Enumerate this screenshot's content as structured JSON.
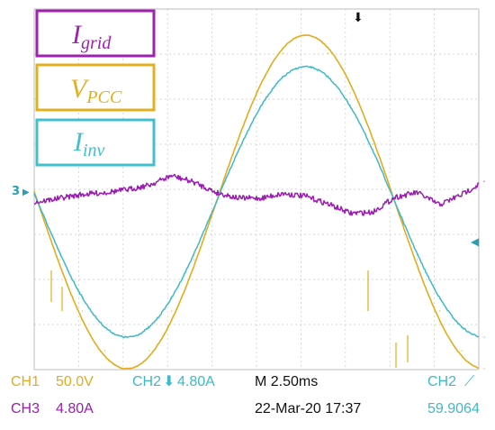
{
  "chart_data": {
    "type": "line",
    "title": "",
    "xlabel": "",
    "ylabel": "",
    "x_unit": "ms",
    "x_range": [
      -0.2,
      24.7
    ],
    "grid": true,
    "grid_divisions": {
      "x": 10,
      "y": 8
    },
    "legend": [
      {
        "text": "I",
        "sub": "grid",
        "color": "#a020b0",
        "position": "top-left"
      },
      {
        "text": "V",
        "sub": "PCC",
        "color": "#e0b020",
        "position": "top-left"
      },
      {
        "text": "I",
        "sub": "inv",
        "color": "#40c0cc",
        "position": "top-left"
      }
    ],
    "series": [
      {
        "name": "V_PCC",
        "channel": "CH1",
        "color": "#e6ab1c",
        "unit": "V",
        "points": [
          [
            0,
            0
          ],
          [
            1.25,
            -64
          ],
          [
            2.5,
            -121
          ],
          [
            3.75,
            -165
          ],
          [
            5,
            -185
          ],
          [
            6.25,
            -165
          ],
          [
            7.5,
            -121
          ],
          [
            8.75,
            -64
          ],
          [
            10,
            0
          ],
          [
            11.25,
            64
          ],
          [
            12.5,
            121
          ],
          [
            13.75,
            165
          ],
          [
            15,
            185
          ],
          [
            16.25,
            165
          ],
          [
            17.5,
            121
          ],
          [
            18.75,
            64
          ],
          [
            20,
            0
          ],
          [
            21.25,
            -64
          ],
          [
            22.5,
            -121
          ],
          [
            23.75,
            -165
          ],
          [
            25,
            -185
          ]
        ]
      },
      {
        "name": "I_inv",
        "channel": "CH2",
        "color": "#3fb8c8",
        "unit": "A",
        "points": [
          [
            0,
            0
          ],
          [
            1.25,
            -5.6
          ],
          [
            2.5,
            -10.3
          ],
          [
            3.75,
            -13.4
          ],
          [
            5,
            -14.4
          ],
          [
            6.25,
            -13.4
          ],
          [
            7.5,
            -10.3
          ],
          [
            8.75,
            -5.6
          ],
          [
            10,
            0
          ],
          [
            11.25,
            5.6
          ],
          [
            12.5,
            10.3
          ],
          [
            13.75,
            13.4
          ],
          [
            15,
            14.4
          ],
          [
            16.25,
            13.4
          ],
          [
            17.5,
            10.3
          ],
          [
            18.75,
            5.6
          ],
          [
            20,
            0
          ],
          [
            21.25,
            -5.6
          ],
          [
            22.5,
            -10.3
          ],
          [
            23.75,
            -13.4
          ],
          [
            25,
            -14.4
          ]
        ]
      },
      {
        "name": "I_grid",
        "channel": "CH3",
        "color": "#9c1cb4",
        "unit": "A",
        "points": [
          [
            0,
            0
          ],
          [
            1.25,
            0.4
          ],
          [
            2.5,
            0.8
          ],
          [
            3.75,
            1.0
          ],
          [
            5,
            1.3
          ],
          [
            6.25,
            1.8
          ],
          [
            7.5,
            2.8
          ],
          [
            8.75,
            2.1
          ],
          [
            10,
            1.0
          ],
          [
            11.25,
            0.4
          ],
          [
            12.5,
            0.4
          ],
          [
            13.75,
            0.9
          ],
          [
            15,
            0.6
          ],
          [
            16.25,
            -0.2
          ],
          [
            17.5,
            -1.2
          ],
          [
            18.75,
            -1.1
          ],
          [
            20,
            0.5
          ],
          [
            21.25,
            1.0
          ],
          [
            22.5,
            -0.3
          ],
          [
            23.75,
            0.8
          ],
          [
            25,
            2.2
          ]
        ]
      }
    ],
    "markers": {
      "trigger_top": "⬇",
      "ch3_ground": "3",
      "right_arrow": "◀"
    }
  },
  "status": {
    "ch1_label": "CH1",
    "ch1_scale": "50.0V",
    "ch2_label": "CH2",
    "ch2_scale": "4.80A",
    "ch2_symbol": "⬇",
    "timebase": "M 2.50ms",
    "ch2_trig_label": "CH2",
    "ch2_trig_symbol": "⟋",
    "ch3_label": "CH3",
    "ch3_scale": "4.80A",
    "datetime": "22-Mar-20 17:37",
    "frequency": "59.9064",
    "colors": {
      "ch1": "#e6ab1c",
      "ch2": "#3fb8c8",
      "ch3": "#9c1cb4",
      "text": "#111111"
    }
  }
}
